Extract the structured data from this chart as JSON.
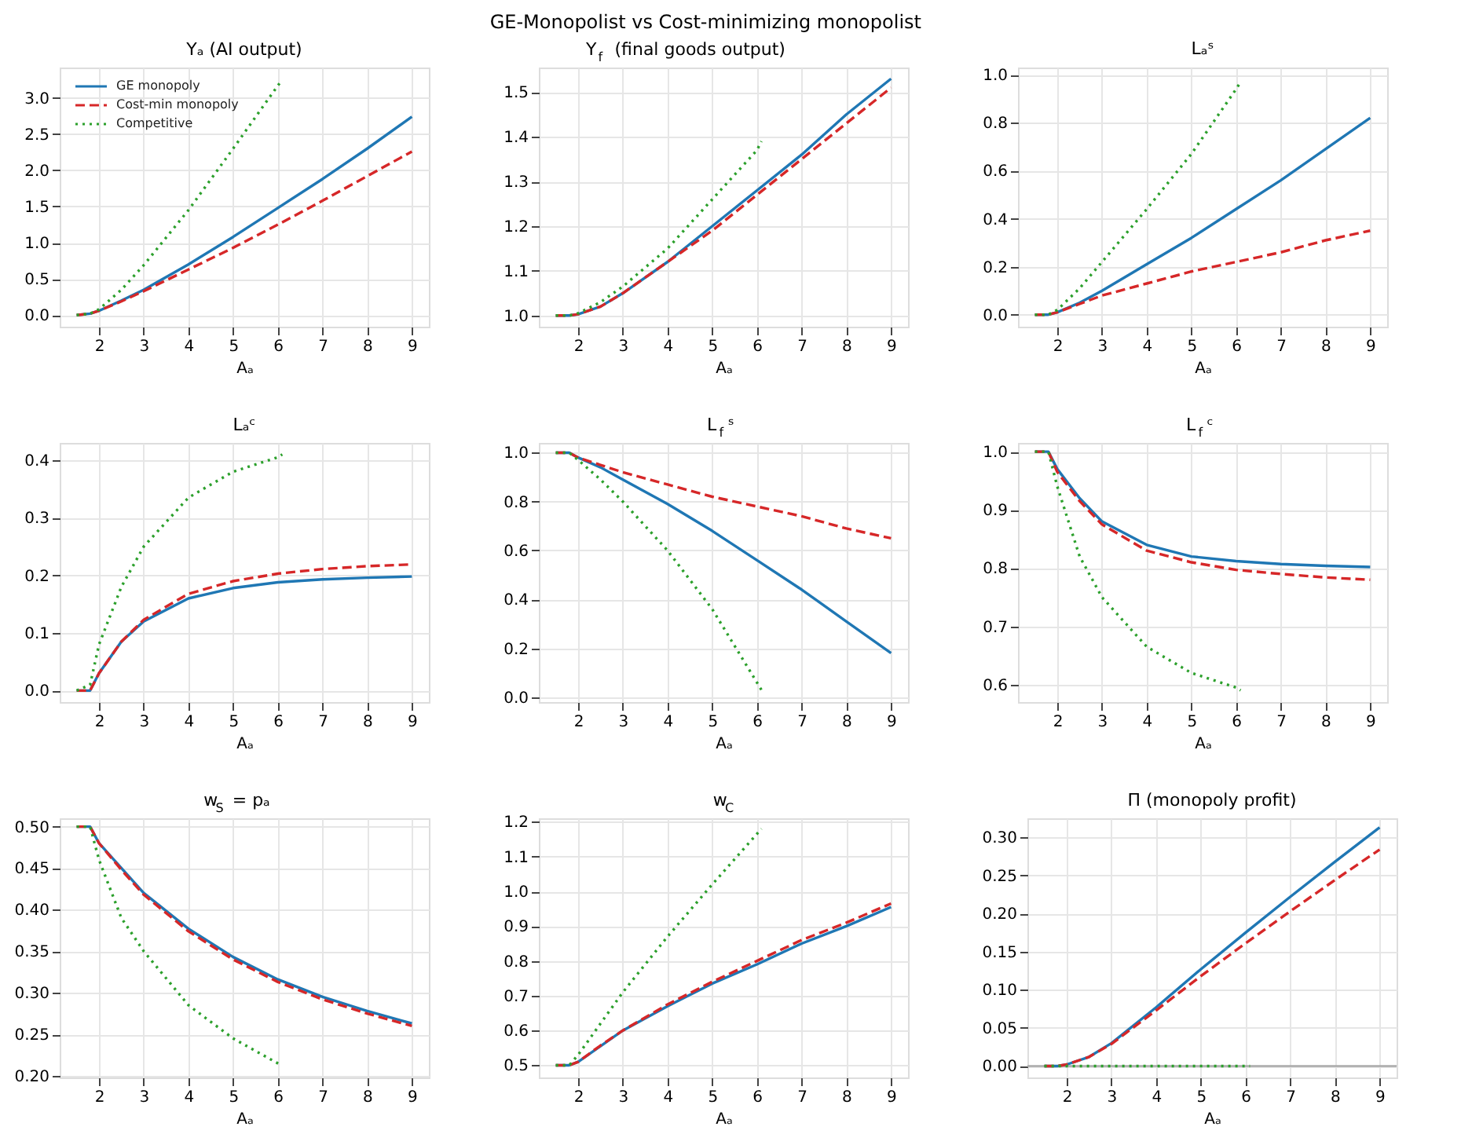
{
  "chart_data": [
    {
      "type": "line",
      "title": "Yₐ (AI output)",
      "xlabel": "Aₐ",
      "annotations": [
        "GE-Monopolist vs Cost-minimizing monopolist"
      ],
      "grid": true,
      "legend": "top left",
      "marker": "none",
      "xlim": [
        1.12,
        9.38
      ],
      "xticks": [
        2,
        3,
        4,
        5,
        6,
        7,
        8,
        9
      ],
      "ylim": [
        -0.16,
        3.42
      ],
      "yticks": [
        {
          "value": 0,
          "label": "0.0"
        },
        0.5,
        {
          "value": 1,
          "label": "1.0"
        },
        1.5,
        {
          "value": 2,
          "label": "2.0"
        },
        2.5,
        {
          "value": 3,
          "label": "3.0"
        }
      ],
      "series": [
        {
          "name": "GE monopoly",
          "color": "#1f77b4",
          "line_style": "solid",
          "x": [
            1.5,
            1.8,
            2,
            2.5,
            3,
            4,
            5,
            6,
            7,
            8,
            9
          ],
          "values": [
            0,
            0.02,
            0.06,
            0.2,
            0.35,
            0.7,
            1.08,
            1.48,
            1.88,
            2.3,
            2.74
          ]
        },
        {
          "name": "Cost-min monopoly",
          "color": "#d62728",
          "line_style": "dashed",
          "x": [
            1.5,
            1.8,
            2,
            2.5,
            3,
            4,
            5,
            6,
            7,
            8,
            9
          ],
          "values": [
            0,
            0.02,
            0.06,
            0.19,
            0.33,
            0.63,
            0.93,
            1.25,
            1.58,
            1.92,
            2.26
          ]
        },
        {
          "name": "Competitive",
          "color": "#2ca02c",
          "line_style": "dotted",
          "x": [
            1.5,
            1.8,
            2,
            2.5,
            3,
            4,
            5,
            6,
            6.1
          ],
          "values": [
            0,
            0.02,
            0.08,
            0.35,
            0.69,
            1.45,
            2.3,
            3.17,
            3.25
          ]
        }
      ]
    },
    {
      "type": "line",
      "title": "Y$_{f}$ (final goods output)",
      "xlabel": "Aₐ",
      "grid": true,
      "marker": "none",
      "xlim": [
        1.12,
        9.38
      ],
      "xticks": [
        2,
        3,
        4,
        5,
        6,
        7,
        8,
        9
      ],
      "ylim": [
        0.975,
        1.555
      ],
      "yticks": [
        {
          "value": 1,
          "label": "1.0"
        },
        1.1,
        1.2,
        1.3,
        1.4,
        1.5
      ],
      "series": [
        {
          "color": "#1f77b4",
          "line_style": "solid",
          "x": [
            1.5,
            1.8,
            2,
            2.5,
            3,
            4,
            5,
            6,
            7,
            8,
            9
          ],
          "values": [
            1,
            1,
            1.003,
            1.02,
            1.05,
            1.12,
            1.2,
            1.28,
            1.36,
            1.45,
            1.53
          ]
        },
        {
          "color": "#d62728",
          "line_style": "dashed",
          "x": [
            1.5,
            1.8,
            2,
            2.5,
            3,
            4,
            5,
            6,
            7,
            8,
            9
          ],
          "values": [
            1,
            1,
            1.003,
            1.02,
            1.05,
            1.12,
            1.19,
            1.27,
            1.35,
            1.43,
            1.51
          ]
        },
        {
          "color": "#2ca02c",
          "line_style": "dotted",
          "x": [
            1.5,
            1.8,
            2,
            2.5,
            3,
            4,
            5,
            6,
            6.1
          ],
          "values": [
            1,
            1,
            1.005,
            1.03,
            1.065,
            1.15,
            1.26,
            1.37,
            1.39
          ]
        }
      ]
    },
    {
      "type": "line",
      "title": "Lₐˢ",
      "xlabel": "Aₐ",
      "grid": true,
      "marker": "none",
      "xlim": [
        1.12,
        9.38
      ],
      "xticks": [
        2,
        3,
        4,
        5,
        6,
        7,
        8,
        9
      ],
      "ylim": [
        -0.05,
        1.03
      ],
      "yticks": [
        {
          "value": 0,
          "label": "0.0"
        },
        0.2,
        0.4,
        0.6,
        0.8,
        {
          "value": 1,
          "label": "1.0"
        }
      ],
      "series": [
        {
          "color": "#1f77b4",
          "line_style": "solid",
          "x": [
            1.5,
            1.8,
            2,
            2.5,
            3,
            4,
            5,
            6,
            7,
            8,
            9
          ],
          "values": [
            0,
            0,
            0.01,
            0.05,
            0.1,
            0.21,
            0.32,
            0.44,
            0.56,
            0.69,
            0.82
          ]
        },
        {
          "color": "#d62728",
          "line_style": "dashed",
          "x": [
            1.5,
            1.8,
            2,
            2.5,
            3,
            4,
            5,
            6,
            7,
            8,
            9
          ],
          "values": [
            0,
            0,
            0.01,
            0.045,
            0.08,
            0.13,
            0.18,
            0.22,
            0.26,
            0.31,
            0.35
          ]
        },
        {
          "color": "#2ca02c",
          "line_style": "dotted",
          "x": [
            1.5,
            1.8,
            2,
            2.5,
            3,
            4,
            5,
            6,
            6.1
          ],
          "values": [
            0,
            0,
            0.02,
            0.11,
            0.22,
            0.44,
            0.67,
            0.94,
            0.97
          ]
        }
      ]
    },
    {
      "type": "line",
      "title": "Lₐᶜ",
      "xlabel": "Aₐ",
      "grid": true,
      "marker": "none",
      "xlim": [
        1.12,
        9.38
      ],
      "xticks": [
        2,
        3,
        4,
        5,
        6,
        7,
        8,
        9
      ],
      "ylim": [
        -0.02,
        0.43
      ],
      "yticks": [
        {
          "value": 0,
          "label": "0.0"
        },
        0.1,
        0.2,
        0.3,
        0.4
      ],
      "series": [
        {
          "color": "#1f77b4",
          "line_style": "solid",
          "x": [
            1.5,
            1.8,
            2,
            2.5,
            3,
            4,
            5,
            6,
            7,
            8,
            9
          ],
          "values": [
            0,
            0,
            0.03,
            0.085,
            0.12,
            0.16,
            0.178,
            0.188,
            0.193,
            0.196,
            0.198
          ]
        },
        {
          "color": "#d62728",
          "line_style": "dashed",
          "x": [
            1.5,
            1.8,
            2,
            2.5,
            3,
            4,
            5,
            6,
            7,
            8,
            9
          ],
          "values": [
            0,
            0,
            0.03,
            0.085,
            0.123,
            0.168,
            0.19,
            0.203,
            0.211,
            0.216,
            0.219
          ]
        },
        {
          "color": "#2ca02c",
          "line_style": "dotted",
          "x": [
            1.5,
            1.8,
            2,
            2.5,
            3,
            4,
            5,
            6,
            6.1
          ],
          "values": [
            0,
            0.01,
            0.08,
            0.18,
            0.25,
            0.335,
            0.38,
            0.405,
            0.41
          ]
        }
      ]
    },
    {
      "type": "line",
      "title": "L$_{f}$ˢ",
      "xlabel": "Aₐ",
      "grid": true,
      "marker": "none",
      "xlim": [
        1.12,
        9.38
      ],
      "xticks": [
        2,
        3,
        4,
        5,
        6,
        7,
        8,
        9
      ],
      "ylim": [
        -0.02,
        1.04
      ],
      "yticks": [
        {
          "value": 0,
          "label": "0.0"
        },
        0.2,
        0.4,
        0.6,
        0.8,
        {
          "value": 1,
          "label": "1.0"
        }
      ],
      "series": [
        {
          "color": "#1f77b4",
          "line_style": "solid",
          "x": [
            1.5,
            1.8,
            2,
            2.5,
            3,
            4,
            5,
            6,
            7,
            8,
            9
          ],
          "values": [
            1,
            1,
            0.98,
            0.94,
            0.89,
            0.79,
            0.68,
            0.56,
            0.44,
            0.31,
            0.18
          ]
        },
        {
          "color": "#d62728",
          "line_style": "dashed",
          "x": [
            1.5,
            1.8,
            2,
            2.5,
            3,
            4,
            5,
            6,
            7,
            8,
            9
          ],
          "values": [
            1,
            1,
            0.98,
            0.95,
            0.92,
            0.87,
            0.82,
            0.78,
            0.74,
            0.69,
            0.65
          ]
        },
        {
          "color": "#2ca02c",
          "line_style": "dotted",
          "x": [
            1.5,
            1.8,
            2,
            2.5,
            3,
            4,
            5,
            6,
            6.1
          ],
          "values": [
            1,
            1,
            0.97,
            0.89,
            0.8,
            0.6,
            0.36,
            0.06,
            0.03
          ]
        }
      ]
    },
    {
      "type": "line",
      "title": "L$_{f}$ᶜ",
      "xlabel": "Aₐ",
      "grid": true,
      "marker": "none",
      "xlim": [
        1.12,
        9.38
      ],
      "xticks": [
        2,
        3,
        4,
        5,
        6,
        7,
        8,
        9
      ],
      "ylim": [
        0.57,
        1.015
      ],
      "yticks": [
        0.6,
        0.7,
        0.8,
        0.9,
        {
          "value": 1,
          "label": "1.0"
        }
      ],
      "series": [
        {
          "color": "#1f77b4",
          "line_style": "solid",
          "x": [
            1.5,
            1.8,
            2,
            2.5,
            3,
            4,
            5,
            6,
            7,
            8,
            9
          ],
          "values": [
            1,
            1,
            0.97,
            0.92,
            0.88,
            0.84,
            0.82,
            0.812,
            0.807,
            0.804,
            0.802
          ]
        },
        {
          "color": "#d62728",
          "line_style": "dashed",
          "x": [
            1.5,
            1.8,
            2,
            2.5,
            3,
            4,
            5,
            6,
            7,
            8,
            9
          ],
          "values": [
            1,
            1,
            0.965,
            0.915,
            0.875,
            0.83,
            0.81,
            0.797,
            0.79,
            0.784,
            0.78
          ]
        },
        {
          "color": "#2ca02c",
          "line_style": "dotted",
          "x": [
            1.5,
            1.8,
            2,
            2.5,
            3,
            4,
            5,
            6,
            6.1
          ],
          "values": [
            1,
            1,
            0.94,
            0.82,
            0.75,
            0.665,
            0.62,
            0.595,
            0.59
          ]
        }
      ]
    },
    {
      "type": "line",
      "title": "w$_{S}$ = pₐ",
      "xlabel": "Aₐ",
      "grid": true,
      "marker": "none",
      "xlim": [
        1.12,
        9.38
      ],
      "xticks": [
        2,
        3,
        4,
        5,
        6,
        7,
        8,
        9
      ],
      "ylim": [
        0.198,
        0.51
      ],
      "yticks": [
        {
          "value": 0.2,
          "label": "0.20"
        },
        0.25,
        {
          "value": 0.3,
          "label": "0.30"
        },
        0.35,
        {
          "value": 0.4,
          "label": "0.40"
        },
        0.45,
        {
          "value": 0.5,
          "label": "0.50"
        }
      ],
      "series": [
        {
          "color": "#1f77b4",
          "line_style": "solid",
          "x": [
            1.5,
            1.8,
            2,
            2.5,
            3,
            4,
            5,
            6,
            7,
            8,
            9
          ],
          "values": [
            0.5,
            0.5,
            0.48,
            0.45,
            0.42,
            0.377,
            0.343,
            0.316,
            0.295,
            0.278,
            0.263
          ]
        },
        {
          "color": "#d62728",
          "line_style": "dashed",
          "x": [
            1.5,
            1.8,
            2,
            2.5,
            3,
            4,
            5,
            6,
            7,
            8,
            9
          ],
          "values": [
            0.5,
            0.5,
            0.48,
            0.448,
            0.418,
            0.374,
            0.34,
            0.313,
            0.292,
            0.275,
            0.26
          ]
        },
        {
          "color": "#2ca02c",
          "line_style": "dotted",
          "x": [
            1.5,
            1.8,
            2,
            2.5,
            3,
            4,
            5,
            6,
            6.1
          ],
          "values": [
            0.5,
            0.5,
            0.46,
            0.39,
            0.35,
            0.285,
            0.245,
            0.215,
            0.212
          ]
        }
      ]
    },
    {
      "type": "line",
      "title": "w$_{C}$",
      "xlabel": "Aₐ",
      "grid": true,
      "marker": "none",
      "xlim": [
        1.12,
        9.38
      ],
      "xticks": [
        2,
        3,
        4,
        5,
        6,
        7,
        8,
        9
      ],
      "ylim": [
        0.465,
        1.21
      ],
      "yticks": [
        0.5,
        0.6,
        0.7,
        0.8,
        0.9,
        {
          "value": 1,
          "label": "1.0"
        },
        1.1,
        1.2
      ],
      "series": [
        {
          "color": "#1f77b4",
          "line_style": "solid",
          "x": [
            1.5,
            1.8,
            2,
            2.5,
            3,
            4,
            5,
            6,
            7,
            8,
            9
          ],
          "values": [
            0.5,
            0.5,
            0.51,
            0.555,
            0.6,
            0.67,
            0.735,
            0.79,
            0.85,
            0.9,
            0.955
          ]
        },
        {
          "color": "#d62728",
          "line_style": "dashed",
          "x": [
            1.5,
            1.8,
            2,
            2.5,
            3,
            4,
            5,
            6,
            7,
            8,
            9
          ],
          "values": [
            0.5,
            0.5,
            0.51,
            0.557,
            0.6,
            0.675,
            0.74,
            0.8,
            0.86,
            0.91,
            0.965
          ]
        },
        {
          "color": "#2ca02c",
          "line_style": "dotted",
          "x": [
            1.5,
            1.8,
            2,
            2.5,
            3,
            4,
            5,
            6,
            6.1
          ],
          "values": [
            0.5,
            0.5,
            0.53,
            0.62,
            0.71,
            0.87,
            1.02,
            1.165,
            1.18
          ]
        }
      ]
    },
    {
      "type": "line",
      "title": "Π (monopoly profit)",
      "xlabel": "Aₐ",
      "grid": true,
      "marker": "none",
      "xlim": [
        1.12,
        9.38
      ],
      "xticks": [
        2,
        3,
        4,
        5,
        6,
        7,
        8,
        9
      ],
      "ylim": [
        -0.015,
        0.325
      ],
      "yticks": [
        {
          "value": 0,
          "label": "0.00"
        },
        0.05,
        {
          "value": 0.1,
          "label": "0.10"
        },
        0.15,
        {
          "value": 0.2,
          "label": "0.20"
        },
        0.25,
        {
          "value": 0.3,
          "label": "0.30"
        }
      ],
      "ref_lines": [
        {
          "axis": "y",
          "value": 0,
          "color": "#aaaaaa"
        }
      ],
      "series": [
        {
          "color": "#1f77b4",
          "line_style": "solid",
          "x": [
            1.5,
            1.8,
            2,
            2.5,
            3,
            4,
            5,
            6,
            7,
            8,
            9
          ],
          "values": [
            0,
            0,
            0.002,
            0.012,
            0.03,
            0.077,
            0.127,
            0.175,
            0.222,
            0.268,
            0.313
          ]
        },
        {
          "color": "#d62728",
          "line_style": "dashed",
          "x": [
            1.5,
            1.8,
            2,
            2.5,
            3,
            4,
            5,
            6,
            7,
            8,
            9
          ],
          "values": [
            0,
            0,
            0.002,
            0.012,
            0.029,
            0.073,
            0.118,
            0.161,
            0.203,
            0.244,
            0.284
          ]
        },
        {
          "color": "#2ca02c",
          "line_style": "dotted",
          "x": [
            1.5,
            1.8,
            2,
            2.5,
            3,
            4,
            5,
            6,
            6.1
          ],
          "values": [
            0,
            0,
            0,
            0,
            0,
            0,
            0,
            0,
            0
          ]
        }
      ]
    }
  ]
}
